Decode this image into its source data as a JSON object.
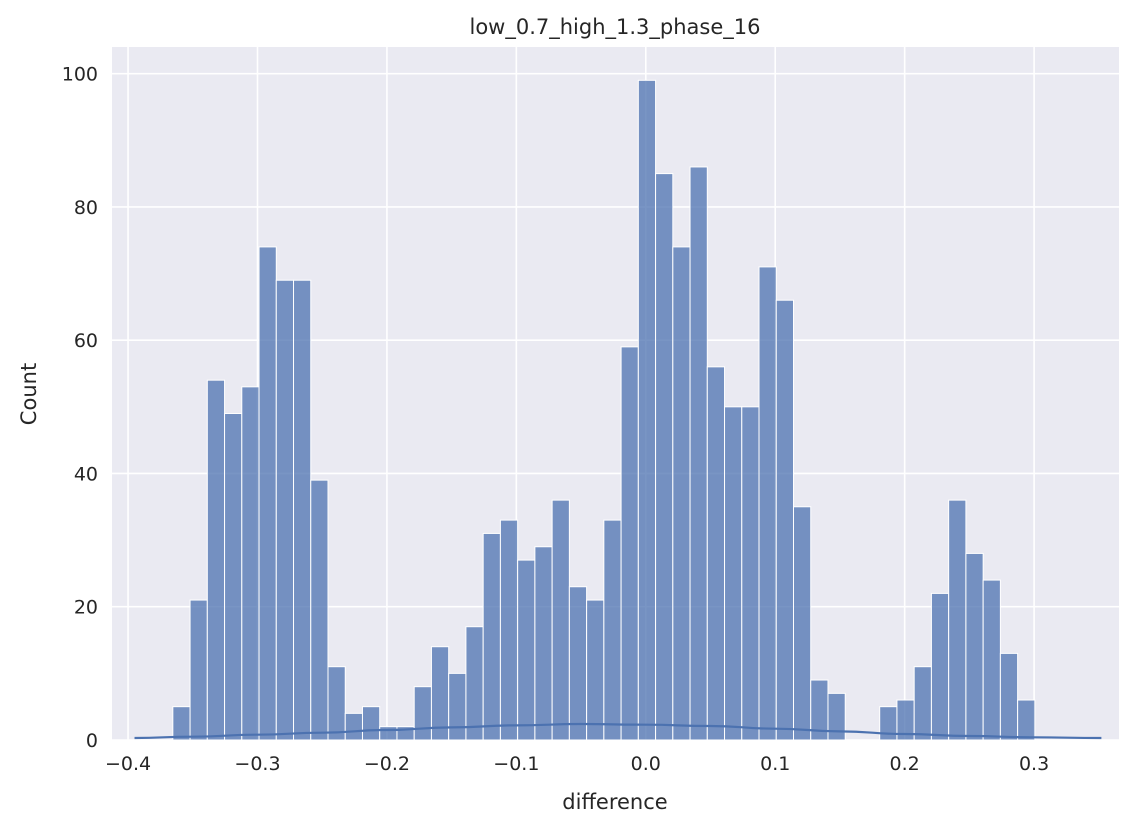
{
  "chart_data": {
    "type": "bar",
    "title": "low_0.7_high_1.3_phase_16",
    "xlabel": "difference",
    "ylabel": "Count",
    "xlim": [
      -0.4124,
      0.3656
    ],
    "ylim": [
      0,
      104
    ],
    "xticks": [
      -0.4,
      -0.3,
      -0.2,
      -0.1,
      0.0,
      0.1,
      0.2,
      0.3
    ],
    "xtick_labels": [
      "−0.4",
      "−0.3",
      "−0.2",
      "−0.1",
      "0.0",
      "0.1",
      "0.2",
      "0.3"
    ],
    "yticks": [
      0,
      20,
      40,
      60,
      80,
      100
    ],
    "ytick_labels": [
      "0",
      "20",
      "40",
      "60",
      "80",
      "100"
    ],
    "grid": true,
    "bin_start": -0.3654,
    "bin_width": 0.01332,
    "values": [
      5,
      21,
      54,
      49,
      53,
      74,
      69,
      69,
      39,
      11,
      4,
      5,
      2,
      2,
      8,
      14,
      10,
      17,
      31,
      33,
      27,
      29,
      36,
      23,
      21,
      33,
      59,
      99,
      85,
      74,
      86,
      56,
      50,
      50,
      71,
      66,
      35,
      9,
      7,
      0,
      0,
      5,
      6,
      11,
      22,
      36,
      28,
      24,
      13,
      6
    ],
    "kde": {
      "x": [
        -0.395,
        -0.35,
        -0.3,
        -0.25,
        -0.2,
        -0.15,
        -0.1,
        -0.05,
        0.0,
        0.05,
        0.1,
        0.15,
        0.2,
        0.25,
        0.3,
        0.352
      ],
      "y": [
        0.3,
        0.5,
        0.8,
        1.1,
        1.5,
        1.9,
        2.2,
        2.4,
        2.3,
        2.1,
        1.7,
        1.3,
        0.9,
        0.6,
        0.4,
        0.3
      ]
    },
    "colors": {
      "bar_fill": "#4c72b0",
      "kde_line": "#4c72b0",
      "plot_bg": "#eaeaf2",
      "grid": "#ffffff"
    }
  }
}
